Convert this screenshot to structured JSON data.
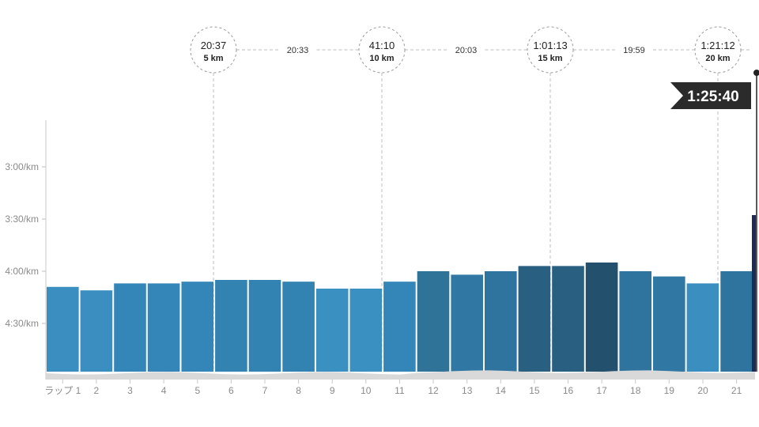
{
  "chart_data": {
    "type": "bar",
    "yaxis": {
      "unit": "/km",
      "inverted": true,
      "ticks": [
        "3:00/km",
        "3:30/km",
        "4:00/km",
        "4:30/km"
      ],
      "tick_seconds": [
        180,
        210,
        240,
        270
      ]
    },
    "categories": [
      "ラップ 1",
      "2",
      "3",
      "4",
      "5",
      "6",
      "7",
      "8",
      "9",
      "10",
      "11",
      "12",
      "13",
      "14",
      "15",
      "16",
      "17",
      "18",
      "19",
      "20",
      "21"
    ],
    "pace_seconds": [
      249,
      251,
      247,
      247,
      246,
      245,
      245,
      246,
      250,
      250,
      246,
      240,
      242,
      240,
      237,
      237,
      235,
      240,
      243,
      247,
      240
    ],
    "bar_colors": [
      "#3a8ec0",
      "#3a8ec0",
      "#3586b8",
      "#3586b8",
      "#3586b8",
      "#3282b2",
      "#3282b2",
      "#3282b2",
      "#3b90c2",
      "#3b90c2",
      "#3586b8",
      "#2f7399",
      "#3078a3",
      "#2f749e",
      "#295f80",
      "#295f80",
      "#22506d",
      "#2f749e",
      "#3078a3",
      "#3a8ec0",
      "#2f749e"
    ],
    "checkpoints": [
      {
        "time": "20:37",
        "distance": "5 km"
      },
      {
        "time": "41:10",
        "distance": "10 km"
      },
      {
        "time": "1:01:13",
        "distance": "15 km"
      },
      {
        "time": "1:21:12",
        "distance": "20 km"
      }
    ],
    "splits": [
      "20:33",
      "20:03",
      "19:59"
    ],
    "finish_time": "1:25:40"
  }
}
